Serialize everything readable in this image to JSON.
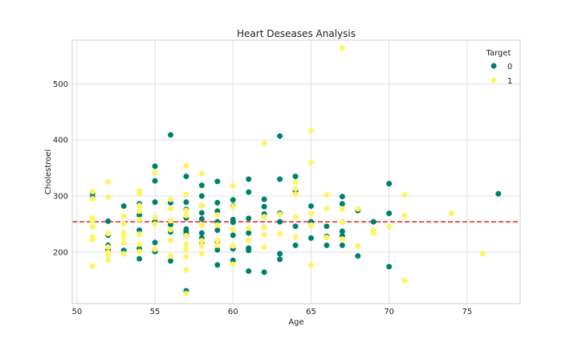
{
  "chart_data": {
    "type": "scatter",
    "title": "Heart Deseases Analysis",
    "xlabel": "Age",
    "ylabel": "Cholestroel",
    "xlim": [
      49.7,
      78.4
    ],
    "ylim": [
      108,
      578
    ],
    "xticks": [
      50,
      55,
      60,
      65,
      70,
      75
    ],
    "yticks": [
      200,
      300,
      400,
      500
    ],
    "grid": true,
    "legend": {
      "title": "Target",
      "placement": "top-right"
    },
    "hline": {
      "y": 254,
      "color": "#e8211b",
      "style": "dashed"
    },
    "series": [
      {
        "name": "0",
        "color": "#00806a",
        "points": [
          [
            51,
            305
          ],
          [
            51,
            298
          ],
          [
            52,
            255
          ],
          [
            52,
            230
          ],
          [
            52,
            212
          ],
          [
            52,
            204
          ],
          [
            53,
            282
          ],
          [
            53,
            203
          ],
          [
            54,
            286
          ],
          [
            54,
            266
          ],
          [
            54,
            239
          ],
          [
            54,
            206
          ],
          [
            54,
            188
          ],
          [
            55,
            353
          ],
          [
            55,
            327
          ],
          [
            55,
            289
          ],
          [
            55,
            254
          ],
          [
            55,
            217
          ],
          [
            55,
            201
          ],
          [
            56,
            409
          ],
          [
            56,
            288
          ],
          [
            56,
            256
          ],
          [
            56,
            249
          ],
          [
            56,
            236
          ],
          [
            56,
            184
          ],
          [
            57,
            335
          ],
          [
            57,
            289
          ],
          [
            57,
            276
          ],
          [
            57,
            261
          ],
          [
            57,
            241
          ],
          [
            57,
            236
          ],
          [
            57,
            232
          ],
          [
            57,
            229
          ],
          [
            57,
            131
          ],
          [
            58,
            319
          ],
          [
            58,
            300
          ],
          [
            58,
            283
          ],
          [
            58,
            270
          ],
          [
            58,
            259
          ],
          [
            58,
            234
          ],
          [
            58,
            225
          ],
          [
            58,
            218
          ],
          [
            59,
            326
          ],
          [
            59,
            288
          ],
          [
            59,
            273
          ],
          [
            59,
            254
          ],
          [
            59,
            239
          ],
          [
            59,
            219
          ],
          [
            59,
            204
          ],
          [
            59,
            177
          ],
          [
            60,
            293
          ],
          [
            60,
            282
          ],
          [
            60,
            258
          ],
          [
            60,
            253
          ],
          [
            60,
            230
          ],
          [
            60,
            206
          ],
          [
            60,
            185
          ],
          [
            61,
            330
          ],
          [
            61,
            307
          ],
          [
            61,
            260
          ],
          [
            61,
            234
          ],
          [
            61,
            207
          ],
          [
            61,
            203
          ],
          [
            61,
            166
          ],
          [
            62,
            294
          ],
          [
            62,
            281
          ],
          [
            62,
            268
          ],
          [
            62,
            263
          ],
          [
            62,
            244
          ],
          [
            62,
            164
          ],
          [
            63,
            407
          ],
          [
            63,
            330
          ],
          [
            63,
            269
          ],
          [
            63,
            254
          ],
          [
            63,
            197
          ],
          [
            63,
            187
          ],
          [
            64,
            335
          ],
          [
            64,
            309
          ],
          [
            64,
            246
          ],
          [
            64,
            212
          ],
          [
            65,
            282
          ],
          [
            65,
            254
          ],
          [
            65,
            248
          ],
          [
            65,
            225
          ],
          [
            66,
            246
          ],
          [
            66,
            228
          ],
          [
            66,
            212
          ],
          [
            67,
            299
          ],
          [
            67,
            286
          ],
          [
            67,
            254
          ],
          [
            67,
            237
          ],
          [
            67,
            229
          ],
          [
            67,
            212
          ],
          [
            68,
            274
          ],
          [
            68,
            193
          ],
          [
            69,
            254
          ],
          [
            70,
            322
          ],
          [
            70,
            269
          ],
          [
            70,
            174
          ],
          [
            77,
            304
          ]
        ]
      },
      {
        "name": "1",
        "color": "#fff462",
        "points": [
          [
            51,
            308
          ],
          [
            51,
            295
          ],
          [
            51,
            261
          ],
          [
            51,
            256
          ],
          [
            51,
            245
          ],
          [
            51,
            227
          ],
          [
            51,
            222
          ],
          [
            51,
            175
          ],
          [
            52,
            325
          ],
          [
            52,
            298
          ],
          [
            52,
            233
          ],
          [
            52,
            209
          ],
          [
            52,
            199
          ],
          [
            52,
            196
          ],
          [
            52,
            186
          ],
          [
            53,
            264
          ],
          [
            53,
            250
          ],
          [
            53,
            234
          ],
          [
            53,
            226
          ],
          [
            53,
            216
          ],
          [
            53,
            197
          ],
          [
            54,
            309
          ],
          [
            54,
            304
          ],
          [
            54,
            283
          ],
          [
            54,
            273
          ],
          [
            54,
            258
          ],
          [
            54,
            232
          ],
          [
            54,
            214
          ],
          [
            54,
            201
          ],
          [
            55,
            342
          ],
          [
            55,
            262
          ],
          [
            55,
            250
          ],
          [
            55,
            205
          ],
          [
            56,
            294
          ],
          [
            56,
            277
          ],
          [
            56,
            256
          ],
          [
            56,
            240
          ],
          [
            56,
            221
          ],
          [
            56,
            193
          ],
          [
            57,
            354
          ],
          [
            57,
            303
          ],
          [
            57,
            274
          ],
          [
            57,
            265
          ],
          [
            57,
            229
          ],
          [
            57,
            214
          ],
          [
            57,
            205
          ],
          [
            57,
            192
          ],
          [
            57,
            168
          ],
          [
            57,
            126
          ],
          [
            58,
            340
          ],
          [
            58,
            283
          ],
          [
            58,
            248
          ],
          [
            58,
            220
          ],
          [
            58,
            211
          ],
          [
            58,
            197
          ],
          [
            59,
            266
          ],
          [
            59,
            248
          ],
          [
            59,
            221
          ],
          [
            59,
            212
          ],
          [
            60,
            318
          ],
          [
            60,
            281
          ],
          [
            60,
            240
          ],
          [
            60,
            211
          ],
          [
            60,
            178
          ],
          [
            61,
            243
          ],
          [
            61,
            221
          ],
          [
            62,
            394
          ],
          [
            62,
            263
          ],
          [
            62,
            244
          ],
          [
            62,
            231
          ],
          [
            62,
            209
          ],
          [
            63,
            267
          ],
          [
            63,
            233
          ],
          [
            64,
            325
          ],
          [
            64,
            313
          ],
          [
            64,
            303
          ],
          [
            64,
            263
          ],
          [
            64,
            227
          ],
          [
            65,
            417
          ],
          [
            65,
            360
          ],
          [
            65,
            269
          ],
          [
            65,
            248
          ],
          [
            65,
            177
          ],
          [
            66,
            302
          ],
          [
            66,
            278
          ],
          [
            66,
            226
          ],
          [
            67,
            564
          ],
          [
            67,
            277
          ],
          [
            67,
            254
          ],
          [
            67,
            223
          ],
          [
            68,
            277
          ],
          [
            68,
            211
          ],
          [
            69,
            239
          ],
          [
            69,
            234
          ],
          [
            70,
            245
          ],
          [
            71,
            302
          ],
          [
            71,
            265
          ],
          [
            71,
            149
          ],
          [
            74,
            269
          ],
          [
            76,
            197
          ]
        ]
      }
    ]
  }
}
